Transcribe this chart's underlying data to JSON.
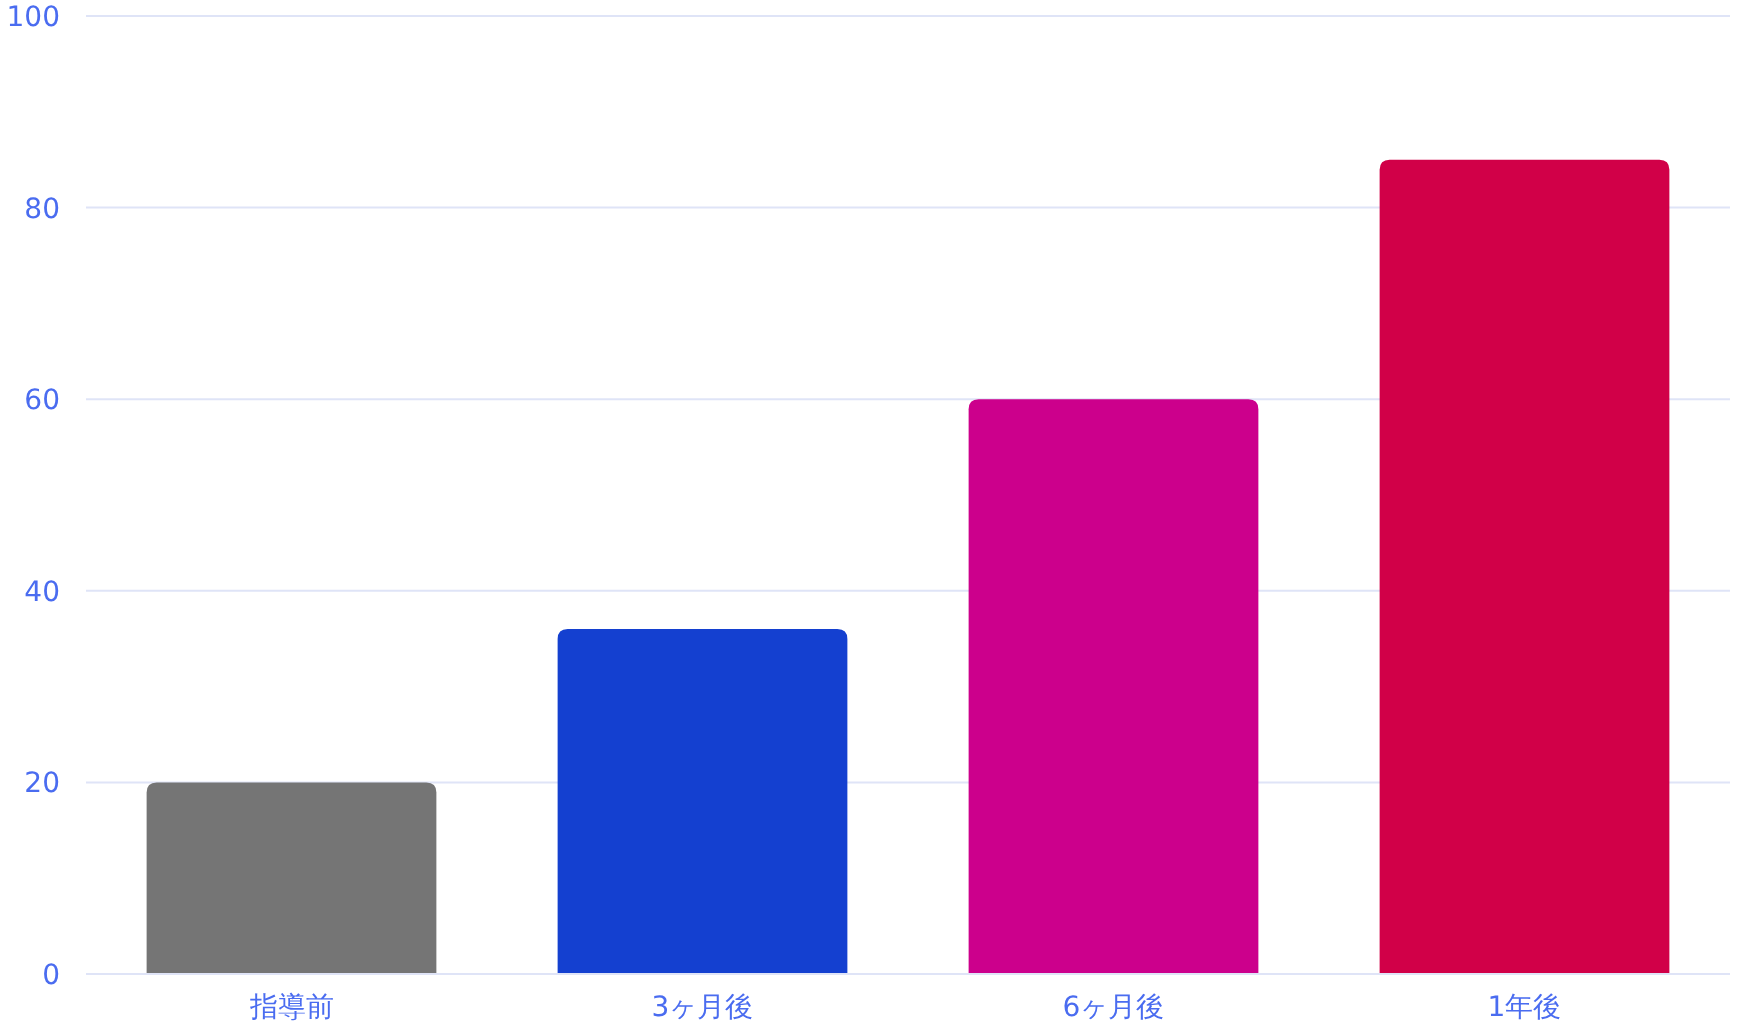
{
  "chart_data": {
    "type": "bar",
    "categories": [
      "指導前",
      "3ヶ月後",
      "6ヶ月後",
      "1年後"
    ],
    "values": [
      20,
      36,
      60,
      85
    ],
    "colors": [
      "#757575",
      "#1440d0",
      "#cc008c",
      "#d10048"
    ],
    "ylim": [
      0,
      100
    ],
    "yticks": [
      0,
      20,
      40,
      60,
      80,
      100
    ],
    "grid": "y",
    "legend": false
  }
}
